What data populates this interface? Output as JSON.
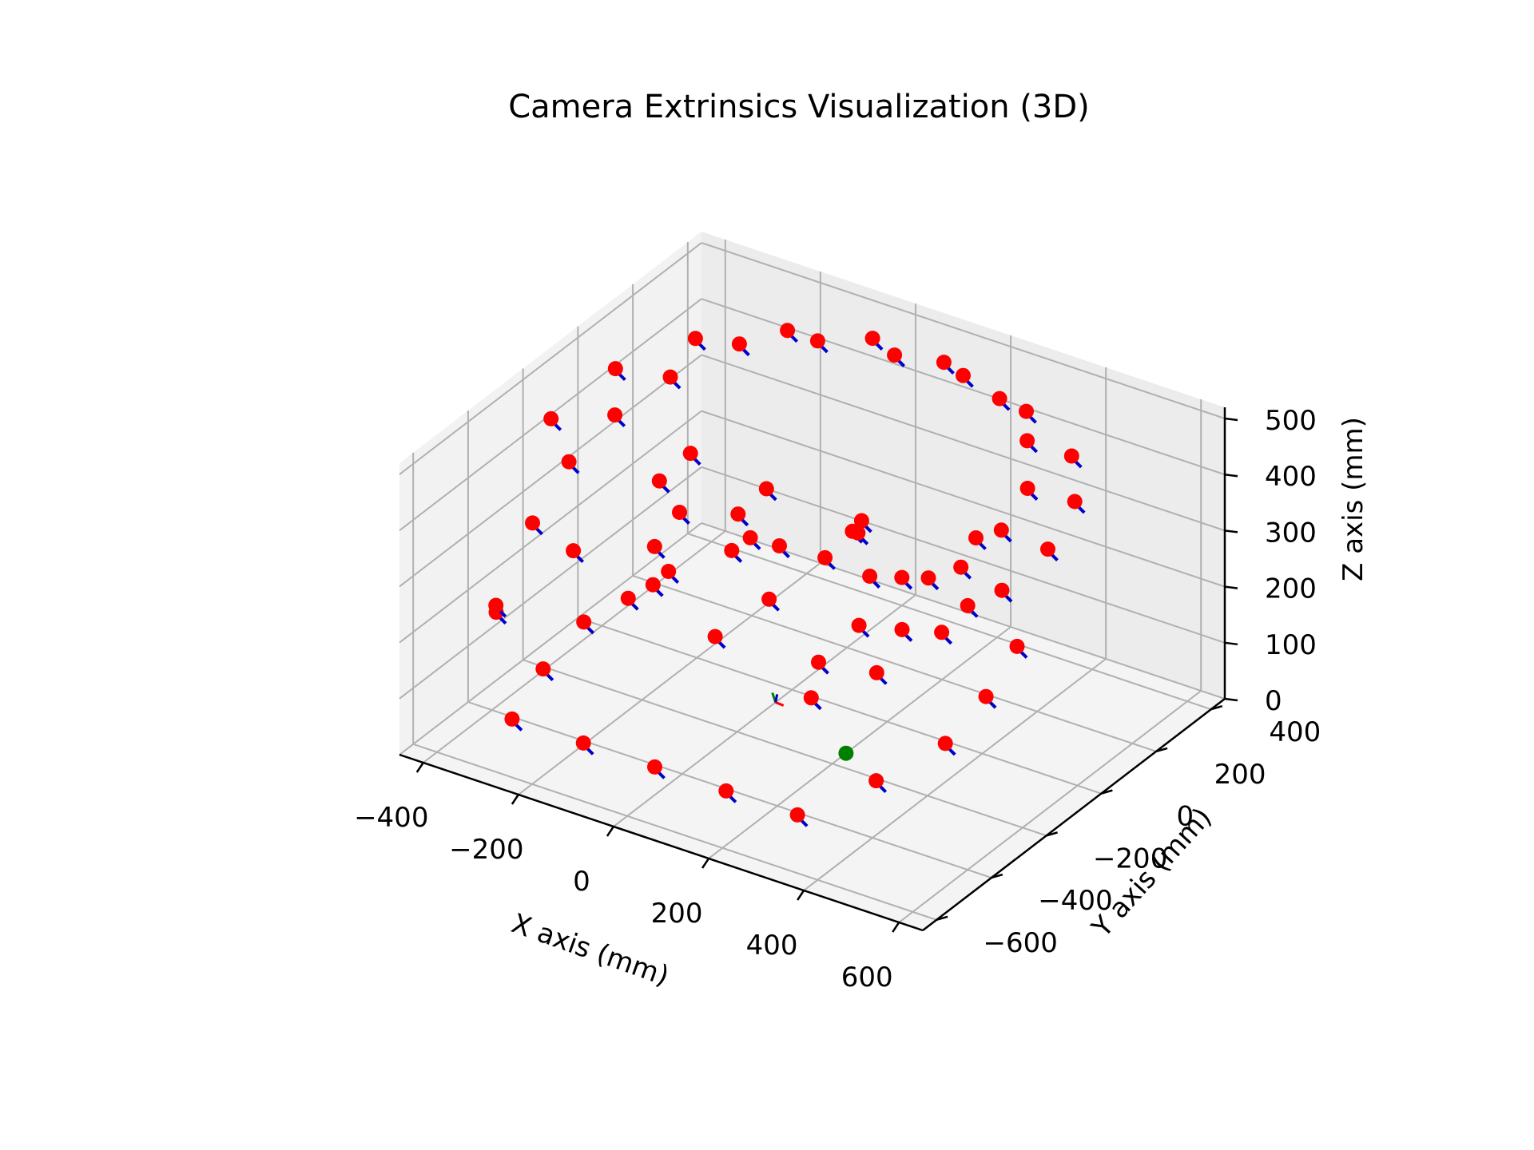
{
  "chart_data": {
    "type": "scatter",
    "projection": "3d",
    "title": "Camera Extrinsics Visualization (3D)",
    "xlabel": "X axis (mm)",
    "ylabel": "Y axis (mm)",
    "zlabel": "Z axis (mm)",
    "xticks": [
      "−400",
      "−200",
      "0",
      "200",
      "400",
      "600"
    ],
    "yticks": [
      "−600",
      "−400",
      "−200",
      "0",
      "200",
      "400"
    ],
    "zticks": [
      "0",
      "100",
      "200",
      "300",
      "400",
      "500"
    ],
    "xlim": [
      -450,
      650
    ],
    "ylim": [
      -650,
      450
    ],
    "zlim": [
      0,
      520
    ],
    "grid": true,
    "legend": false,
    "series": [
      {
        "marker": "circle",
        "color": "#ff0000",
        "description_values": "camera centers (x, y, z) in mm",
        "points": [
          [
            -300,
            -500,
            50
          ],
          [
            -150,
            -500,
            50
          ],
          [
            0,
            -500,
            50
          ],
          [
            150,
            -500,
            50
          ],
          [
            300,
            -500,
            50
          ],
          [
            -350,
            -300,
            50
          ],
          [
            350,
            -300,
            50
          ],
          [
            -380,
            -100,
            50
          ],
          [
            380,
            -100,
            50
          ],
          [
            -350,
            100,
            50
          ],
          [
            350,
            100,
            50
          ],
          [
            -300,
            300,
            50
          ],
          [
            300,
            300,
            50
          ],
          [
            -150,
            380,
            50
          ],
          [
            0,
            400,
            50
          ],
          [
            150,
            380,
            50
          ],
          [
            -200,
            -250,
            200
          ],
          [
            0,
            -280,
            200
          ],
          [
            200,
            -250,
            200
          ],
          [
            -260,
            -50,
            200
          ],
          [
            260,
            -50,
            200
          ],
          [
            -200,
            150,
            200
          ],
          [
            200,
            150,
            200
          ],
          [
            0,
            220,
            200
          ],
          [
            -420,
            -350,
            150
          ],
          [
            -430,
            -200,
            250
          ],
          [
            -440,
            -50,
            300
          ],
          [
            -430,
            100,
            330
          ],
          [
            -400,
            250,
            350
          ],
          [
            -330,
            380,
            380
          ],
          [
            -200,
            440,
            400
          ],
          [
            -50,
            460,
            410
          ],
          [
            100,
            450,
            420
          ],
          [
            250,
            420,
            410
          ],
          [
            380,
            360,
            390
          ],
          [
            450,
            250,
            370
          ],
          [
            480,
            100,
            350
          ],
          [
            470,
            -50,
            330
          ],
          [
            430,
            -200,
            300
          ],
          [
            380,
            -350,
            270
          ],
          [
            300,
            -450,
            240
          ],
          [
            -380,
            -420,
            200
          ],
          [
            -200,
            -450,
            360
          ],
          [
            0,
            -450,
            380
          ],
          [
            200,
            -430,
            380
          ],
          [
            360,
            -380,
            360
          ],
          [
            -420,
            -150,
            420
          ],
          [
            -400,
            50,
            440
          ],
          [
            -330,
            220,
            450
          ],
          [
            -200,
            330,
            460
          ],
          [
            -50,
            380,
            470
          ],
          [
            100,
            380,
            470
          ],
          [
            240,
            340,
            460
          ],
          [
            350,
            250,
            450
          ],
          [
            420,
            130,
            430
          ],
          [
            440,
            0,
            410
          ],
          [
            430,
            -130,
            390
          ],
          [
            -100,
            80,
            300
          ],
          [
            100,
            80,
            300
          ],
          [
            -30,
            -100,
            300
          ],
          [
            60,
            -150,
            330
          ],
          [
            -150,
            -150,
            330
          ],
          [
            150,
            -20,
            330
          ],
          [
            -250,
            -50,
            320
          ],
          [
            250,
            -150,
            330
          ],
          [
            -300,
            150,
            280
          ],
          [
            300,
            150,
            300
          ]
        ]
      },
      {
        "marker": "circle",
        "color": "#008000",
        "description_values": "world origin marker",
        "points": [
          [
            200,
            -150,
            0
          ]
        ]
      }
    ]
  }
}
